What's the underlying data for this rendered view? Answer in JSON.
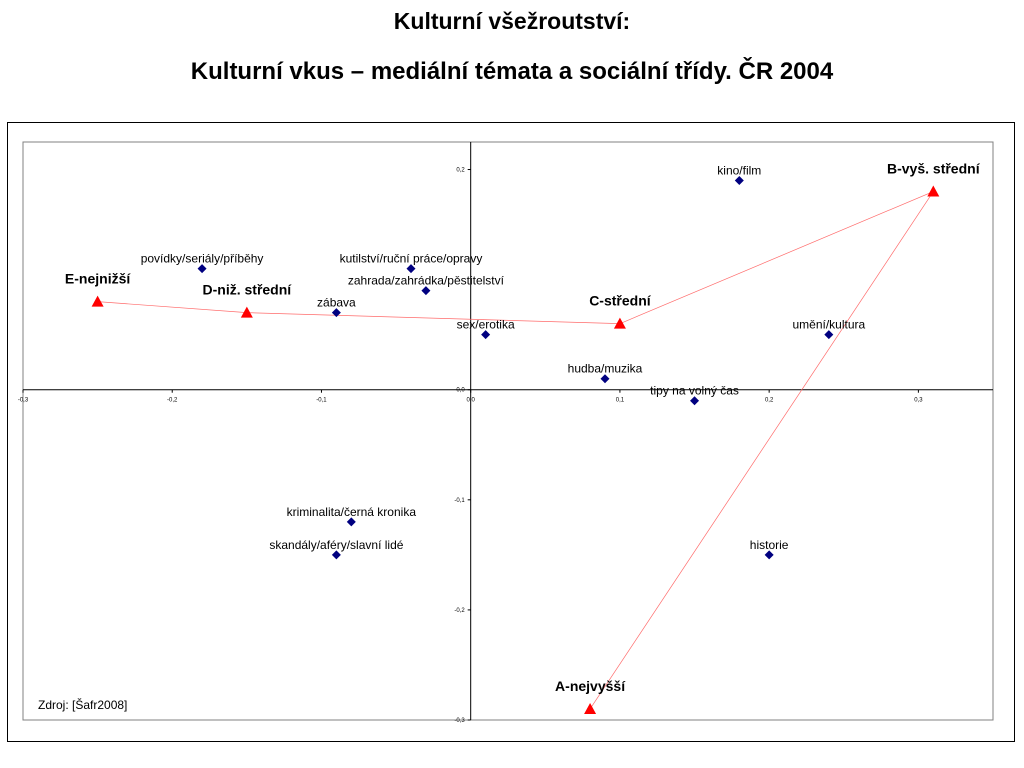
{
  "title": {
    "line1": "Kulturní všežroutství:",
    "line2": "Kulturní vkus – mediální témata a sociální třídy. ČR 2004"
  },
  "source": "Zdroj: [Šafr2008]",
  "chart_data": {
    "type": "scatter",
    "title": "Kulturní vkus – mediální témata a sociální třídy. ČR 2004",
    "xlim": [
      -0.3,
      0.35
    ],
    "ylim": [
      -0.3,
      0.225
    ],
    "x_ticks": [
      -0.3,
      -0.2,
      -0.1,
      0.0,
      0.1,
      0.2,
      0.3
    ],
    "x_tick_labels": [
      "-0,3",
      "-0,2",
      "-0,1",
      "0,0",
      "0,1",
      "0,2",
      "0,3"
    ],
    "y_ticks": [
      0.2,
      0.0,
      -0.1,
      -0.2,
      -0.3
    ],
    "y_tick_labels": [
      "0,2",
      "0,0",
      "-0,1",
      "-0,2",
      "-0,3"
    ],
    "grid": false,
    "topics": {
      "color": "#000080",
      "marker": "diamond",
      "points": [
        {
          "label": "kino/film",
          "x": 0.18,
          "y": 0.19
        },
        {
          "label": "povídky/seriály/příběhy",
          "x": -0.18,
          "y": 0.11
        },
        {
          "label": "kutilství/ruční práce/opravy",
          "x": -0.04,
          "y": 0.11
        },
        {
          "label": "zahrada/zahrádka/pěstitelství",
          "x": -0.03,
          "y": 0.09
        },
        {
          "label": "zábava",
          "x": -0.09,
          "y": 0.07
        },
        {
          "label": "sex/erotika",
          "x": 0.01,
          "y": 0.05
        },
        {
          "label": "umění/kultura",
          "x": 0.24,
          "y": 0.05
        },
        {
          "label": "hudba/muzika",
          "x": 0.09,
          "y": 0.01
        },
        {
          "label": "tipy na volný čas",
          "x": 0.15,
          "y": -0.01
        },
        {
          "label": "kriminalita/černá kronika",
          "x": -0.08,
          "y": -0.12
        },
        {
          "label": "skandály/aféry/slavní lidé",
          "x": -0.09,
          "y": -0.15
        },
        {
          "label": "historie",
          "x": 0.2,
          "y": -0.15
        }
      ]
    },
    "classes": {
      "color": "#ff0000",
      "marker": "triangle",
      "points": [
        {
          "label": "E-nejnižší",
          "x": -0.25,
          "y": 0.08
        },
        {
          "label": "D-niž. střední",
          "x": -0.15,
          "y": 0.07
        },
        {
          "label": "C-střední",
          "x": 0.1,
          "y": 0.06
        },
        {
          "label": "B-vyš. střední",
          "x": 0.31,
          "y": 0.18
        },
        {
          "label": "A-nejvyšší",
          "x": 0.08,
          "y": -0.29
        }
      ],
      "connecting_line": [
        "E-nejnižší",
        "D-niž. střední",
        "C-střední",
        "B-vyš. střední",
        "A-nejvyšší"
      ]
    }
  }
}
